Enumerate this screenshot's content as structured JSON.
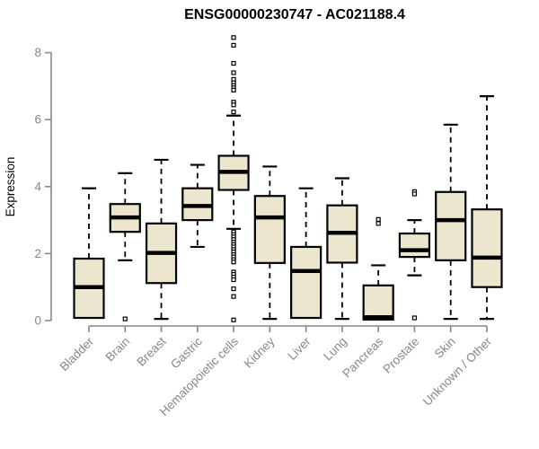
{
  "colors": {
    "background": "#ffffff",
    "title_color": "#000000",
    "axis_color": "#878787",
    "box_fill": "#ECE6CE",
    "box_stroke": "#000000",
    "outlier_fill": "#ffffff"
  },
  "chart_data": {
    "type": "boxplot",
    "title": "ENSG00000230747 - AC021188.4",
    "xlabel": "",
    "ylabel": "Expression",
    "ylim": [
      0,
      8.6
    ],
    "yticks": [
      0,
      2,
      4,
      6,
      8
    ],
    "grid": false,
    "categories": [
      "Bladder",
      "Brain",
      "Breast",
      "Gastric",
      "Hematopoietic cells",
      "Kidney",
      "Liver",
      "Lung",
      "Pancreas",
      "Prostate",
      "Skin",
      "Unknown / Other"
    ],
    "series": [
      {
        "name": "Bladder",
        "whisker_low": 0.08,
        "q1": 0.08,
        "median": 1.0,
        "q3": 1.85,
        "whisker_high": 3.95,
        "outliers": []
      },
      {
        "name": "Brain",
        "whisker_low": 1.8,
        "q1": 2.65,
        "median": 3.08,
        "q3": 3.48,
        "whisker_high": 4.4,
        "outliers": [
          0.05
        ]
      },
      {
        "name": "Breast",
        "whisker_low": 0.05,
        "q1": 1.12,
        "median": 2.02,
        "q3": 2.9,
        "whisker_high": 4.8,
        "outliers": []
      },
      {
        "name": "Gastric",
        "whisker_low": 2.2,
        "q1": 3.0,
        "median": 3.42,
        "q3": 3.95,
        "whisker_high": 4.65,
        "outliers": []
      },
      {
        "name": "Hematopoietic cells",
        "whisker_low": 2.74,
        "q1": 3.9,
        "median": 4.44,
        "q3": 4.92,
        "whisker_high": 6.12,
        "outliers": [
          8.45,
          8.22,
          7.68,
          7.4,
          7.2,
          7.1,
          7.02,
          6.95,
          6.88,
          6.52,
          6.44,
          6.23,
          2.65,
          2.57,
          2.5,
          2.42,
          2.34,
          2.27,
          2.2,
          2.12,
          2.05,
          1.97,
          1.9,
          1.82,
          1.75,
          1.45,
          1.38,
          1.3,
          1.22,
          0.95,
          0.72,
          0.02
        ]
      },
      {
        "name": "Kidney",
        "whisker_low": 0.05,
        "q1": 1.72,
        "median": 3.08,
        "q3": 3.72,
        "whisker_high": 4.6,
        "outliers": []
      },
      {
        "name": "Liver",
        "whisker_low": 0.08,
        "q1": 0.08,
        "median": 1.48,
        "q3": 2.2,
        "whisker_high": 3.95,
        "outliers": []
      },
      {
        "name": "Lung",
        "whisker_low": 0.05,
        "q1": 1.73,
        "median": 2.62,
        "q3": 3.44,
        "whisker_high": 4.25,
        "outliers": []
      },
      {
        "name": "Pancreas",
        "whisker_low": 0.03,
        "q1": 0.03,
        "median": 0.1,
        "q3": 1.05,
        "whisker_high": 1.65,
        "outliers": [
          3.02,
          2.9
        ]
      },
      {
        "name": "Prostate",
        "whisker_low": 1.35,
        "q1": 1.9,
        "median": 2.1,
        "q3": 2.6,
        "whisker_high": 3.0,
        "outliers": [
          3.85,
          3.78,
          0.08
        ]
      },
      {
        "name": "Skin",
        "whisker_low": 0.05,
        "q1": 1.8,
        "median": 3.0,
        "q3": 3.84,
        "whisker_high": 5.85,
        "outliers": []
      },
      {
        "name": "Unknown / Other",
        "whisker_low": 0.05,
        "q1": 1.0,
        "median": 1.88,
        "q3": 3.32,
        "whisker_high": 6.7,
        "outliers": []
      }
    ]
  }
}
